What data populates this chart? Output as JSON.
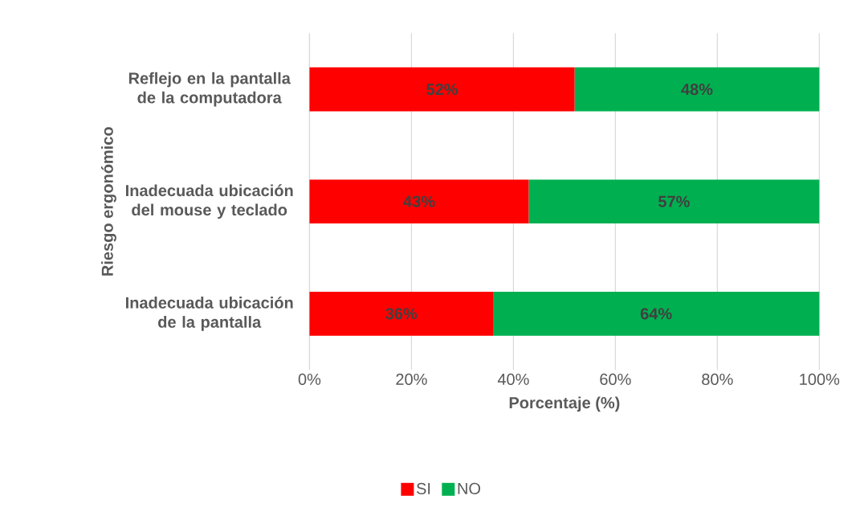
{
  "chart_data": {
    "type": "bar",
    "orientation": "horizontal",
    "stacked": true,
    "xlabel": "Porcentaje (%)",
    "ylabel": "Riesgo ergonómico",
    "categories": [
      "Reflejo en la pantalla de la computadora",
      "Inadecuada ubicación del mouse y teclado",
      "Inadecuada ubicación de la pantalla"
    ],
    "series": [
      {
        "name": "SI",
        "color": "#ff0000",
        "values": [
          52,
          43,
          36
        ],
        "value_labels": [
          "52%",
          "43%",
          "36%"
        ]
      },
      {
        "name": "NO",
        "color": "#00b050",
        "values": [
          48,
          57,
          64
        ],
        "value_labels": [
          "48%",
          "57%",
          "64%"
        ]
      }
    ],
    "xlim": [
      0,
      100
    ],
    "xticks": [
      {
        "value": 0,
        "label": "0%"
      },
      {
        "value": 20,
        "label": "20%"
      },
      {
        "value": 40,
        "label": "40%"
      },
      {
        "value": 60,
        "label": "60%"
      },
      {
        "value": 80,
        "label": "80%"
      },
      {
        "value": 100,
        "label": "100%"
      }
    ],
    "grid": "x",
    "legend": "bottom"
  }
}
